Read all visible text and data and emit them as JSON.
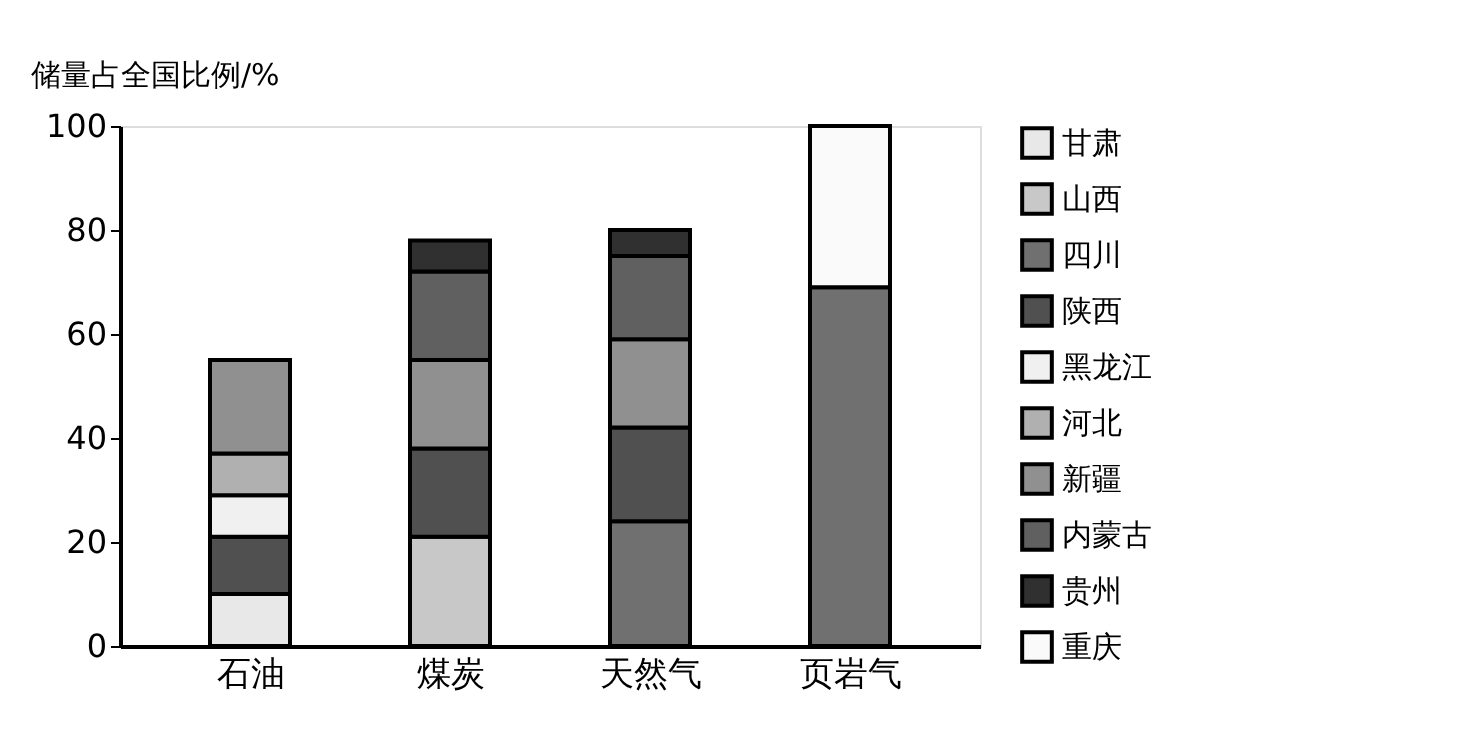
{
  "chart_data": {
    "type": "bar",
    "stacked": true,
    "ylabel": "储量占全国比例/%",
    "categories": [
      "石油",
      "煤炭",
      "天然气",
      "页岩气"
    ],
    "series": [
      {
        "name": "甘肃",
        "color": "#e8e8e8",
        "values": [
          10,
          null,
          null,
          null
        ]
      },
      {
        "name": "山西",
        "color": "#c8c8c8",
        "values": [
          null,
          21,
          null,
          null
        ]
      },
      {
        "name": "四川",
        "color": "#707070",
        "values": [
          null,
          null,
          24,
          69
        ]
      },
      {
        "name": "陕西",
        "color": "#505050",
        "values": [
          11,
          17,
          18,
          null
        ]
      },
      {
        "name": "黑龙江",
        "color": "#f0f0f0",
        "values": [
          8,
          null,
          null,
          null
        ]
      },
      {
        "name": "河北",
        "color": "#b0b0b0",
        "values": [
          8,
          null,
          null,
          null
        ]
      },
      {
        "name": "新疆",
        "color": "#909090",
        "values": [
          18,
          17,
          17,
          null
        ]
      },
      {
        "name": "内蒙古",
        "color": "#606060",
        "values": [
          null,
          17,
          16,
          null
        ]
      },
      {
        "name": "贵州",
        "color": "#303030",
        "values": [
          null,
          6,
          5,
          null
        ]
      },
      {
        "name": "重庆",
        "color": "#fafafa",
        "values": [
          null,
          null,
          null,
          31
        ]
      }
    ],
    "ylim": [
      0,
      100
    ],
    "yticks": [
      0,
      20,
      40,
      60,
      80,
      100
    ],
    "grid": false,
    "legend": "right"
  }
}
